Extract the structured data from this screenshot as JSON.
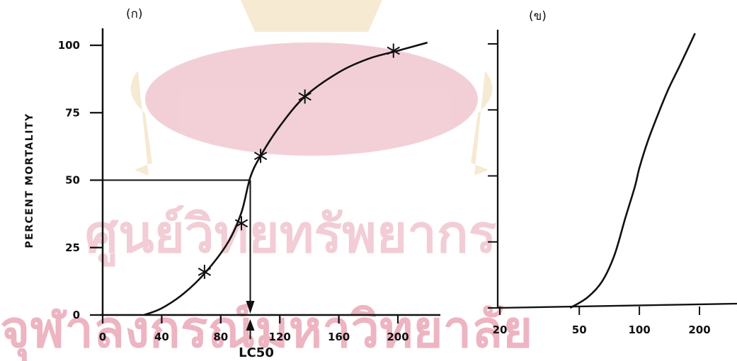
{
  "watermark": {
    "line1": "ศูนย์วิทยทรัพยากร",
    "line2": "จุฬาลงกรณ์มหาวิทยาลัย",
    "seal_color": "#e9a9b8",
    "seal_accent": "#f0d9b0"
  },
  "chart_data": [
    {
      "type": "line",
      "panel_label": "(ก)",
      "ylabel": "PERCENT MORTALITY",
      "xlabel": "",
      "x_ticks": [
        "0",
        "40",
        "80",
        "120",
        "160",
        "200"
      ],
      "y_ticks": [
        "0",
        "25",
        "50",
        "75",
        "100"
      ],
      "xlim": [
        0,
        220
      ],
      "ylim": [
        0,
        100
      ],
      "series": [
        {
          "marker": "asterisk",
          "x": [
            69,
            94,
            107,
            137,
            197
          ],
          "y": [
            16,
            34,
            59,
            81,
            98
          ]
        },
        {
          "style": "curve",
          "x": [
            28,
            40,
            55,
            70,
            85,
            94,
            100,
            107,
            120,
            137,
            160,
            180,
            200,
            220
          ],
          "y": [
            0,
            2.5,
            8,
            16,
            27,
            38,
            51,
            59,
            70,
            81,
            90,
            95,
            98,
            101
          ]
        }
      ],
      "lc50": {
        "label": "LC50",
        "value": 100,
        "percent": 50
      }
    },
    {
      "type": "line",
      "panel_label": "(ข)",
      "x_scale": "log",
      "x_ticks": [
        "20",
        "50",
        "100",
        "200"
      ],
      "xlim": [
        20,
        260
      ],
      "ylim": [
        0,
        100
      ],
      "series": [
        {
          "style": "curve",
          "x": [
            45,
            55,
            65,
            75,
            85,
            95,
            100,
            110,
            125,
            140,
            160,
            190
          ],
          "y": [
            0,
            4,
            10,
            20,
            34,
            46,
            53,
            63,
            74,
            83,
            92,
            104
          ]
        }
      ]
    }
  ]
}
